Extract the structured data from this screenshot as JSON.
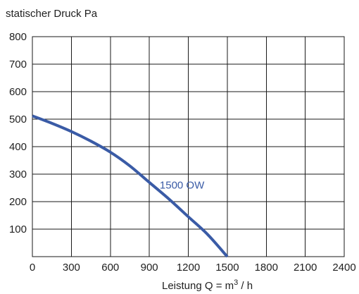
{
  "chart_data": {
    "type": "line",
    "ylabel": "statischer Druck Pa",
    "xlabel_main": "Leistung Q = m",
    "xlabel_sup": "3",
    "xlabel_tail": " / h",
    "xlim": [
      0,
      2400
    ],
    "ylim": [
      0,
      800
    ],
    "xticks": [
      0,
      300,
      600,
      900,
      1200,
      1500,
      1800,
      2100,
      2400
    ],
    "yticks": [
      100,
      200,
      300,
      400,
      500,
      600,
      700,
      800
    ],
    "grid": true,
    "series": [
      {
        "name": "1500 OW",
        "color": "#3a5ba6",
        "label_at": [
          980,
          260
        ],
        "x": [
          0,
          150,
          300,
          450,
          600,
          750,
          900,
          1050,
          1200,
          1350,
          1500
        ],
        "y": [
          512,
          485,
          455,
          420,
          380,
          330,
          270,
          210,
          145,
          80,
          0
        ]
      }
    ]
  }
}
